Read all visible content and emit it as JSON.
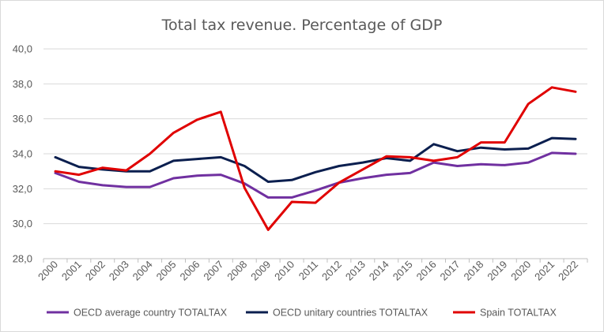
{
  "chart_data": {
    "type": "line",
    "title": "Total tax revenue. Percentage of GDP",
    "xlabel": "",
    "ylabel": "",
    "ylim": [
      28,
      40
    ],
    "y_ticks": [
      "28,0",
      "30,0",
      "32,0",
      "34,0",
      "36,0",
      "38,0",
      "40,0"
    ],
    "y_tick_values": [
      28,
      30,
      32,
      34,
      36,
      38,
      40
    ],
    "categories": [
      "2000",
      "2001",
      "2002",
      "2003",
      "2004",
      "2005",
      "2006",
      "2007",
      "2008",
      "2009",
      "2010",
      "2011",
      "2012",
      "2013",
      "2014",
      "2015",
      "2016",
      "2017",
      "2018",
      "2019",
      "2020",
      "2021",
      "2022"
    ],
    "grid": "horizontal",
    "legend_position": "bottom",
    "series": [
      {
        "name": "OECD average country TOTALTAX",
        "color": "#7030a0",
        "values": [
          32.9,
          32.4,
          32.2,
          32.1,
          32.1,
          32.6,
          32.75,
          32.8,
          32.3,
          31.5,
          31.5,
          31.9,
          32.35,
          32.6,
          32.8,
          32.9,
          33.5,
          33.3,
          33.4,
          33.35,
          33.5,
          34.05,
          34.0
        ]
      },
      {
        "name": "OECD unitary countries TOTALTAX",
        "color": "#0b1f4f",
        "values": [
          33.8,
          33.25,
          33.1,
          33.0,
          33.0,
          33.6,
          33.7,
          33.8,
          33.3,
          32.4,
          32.5,
          32.95,
          33.3,
          33.5,
          33.75,
          33.6,
          34.55,
          34.15,
          34.35,
          34.25,
          34.3,
          34.9,
          34.85
        ]
      },
      {
        "name": "Spain TOTALTAX",
        "color": "#e00000",
        "values": [
          33.0,
          32.8,
          33.2,
          33.05,
          34.0,
          35.2,
          35.95,
          36.4,
          32.05,
          29.65,
          31.25,
          31.2,
          32.35,
          33.1,
          33.85,
          33.8,
          33.6,
          33.8,
          34.65,
          34.65,
          36.85,
          37.8,
          37.55
        ]
      }
    ]
  }
}
